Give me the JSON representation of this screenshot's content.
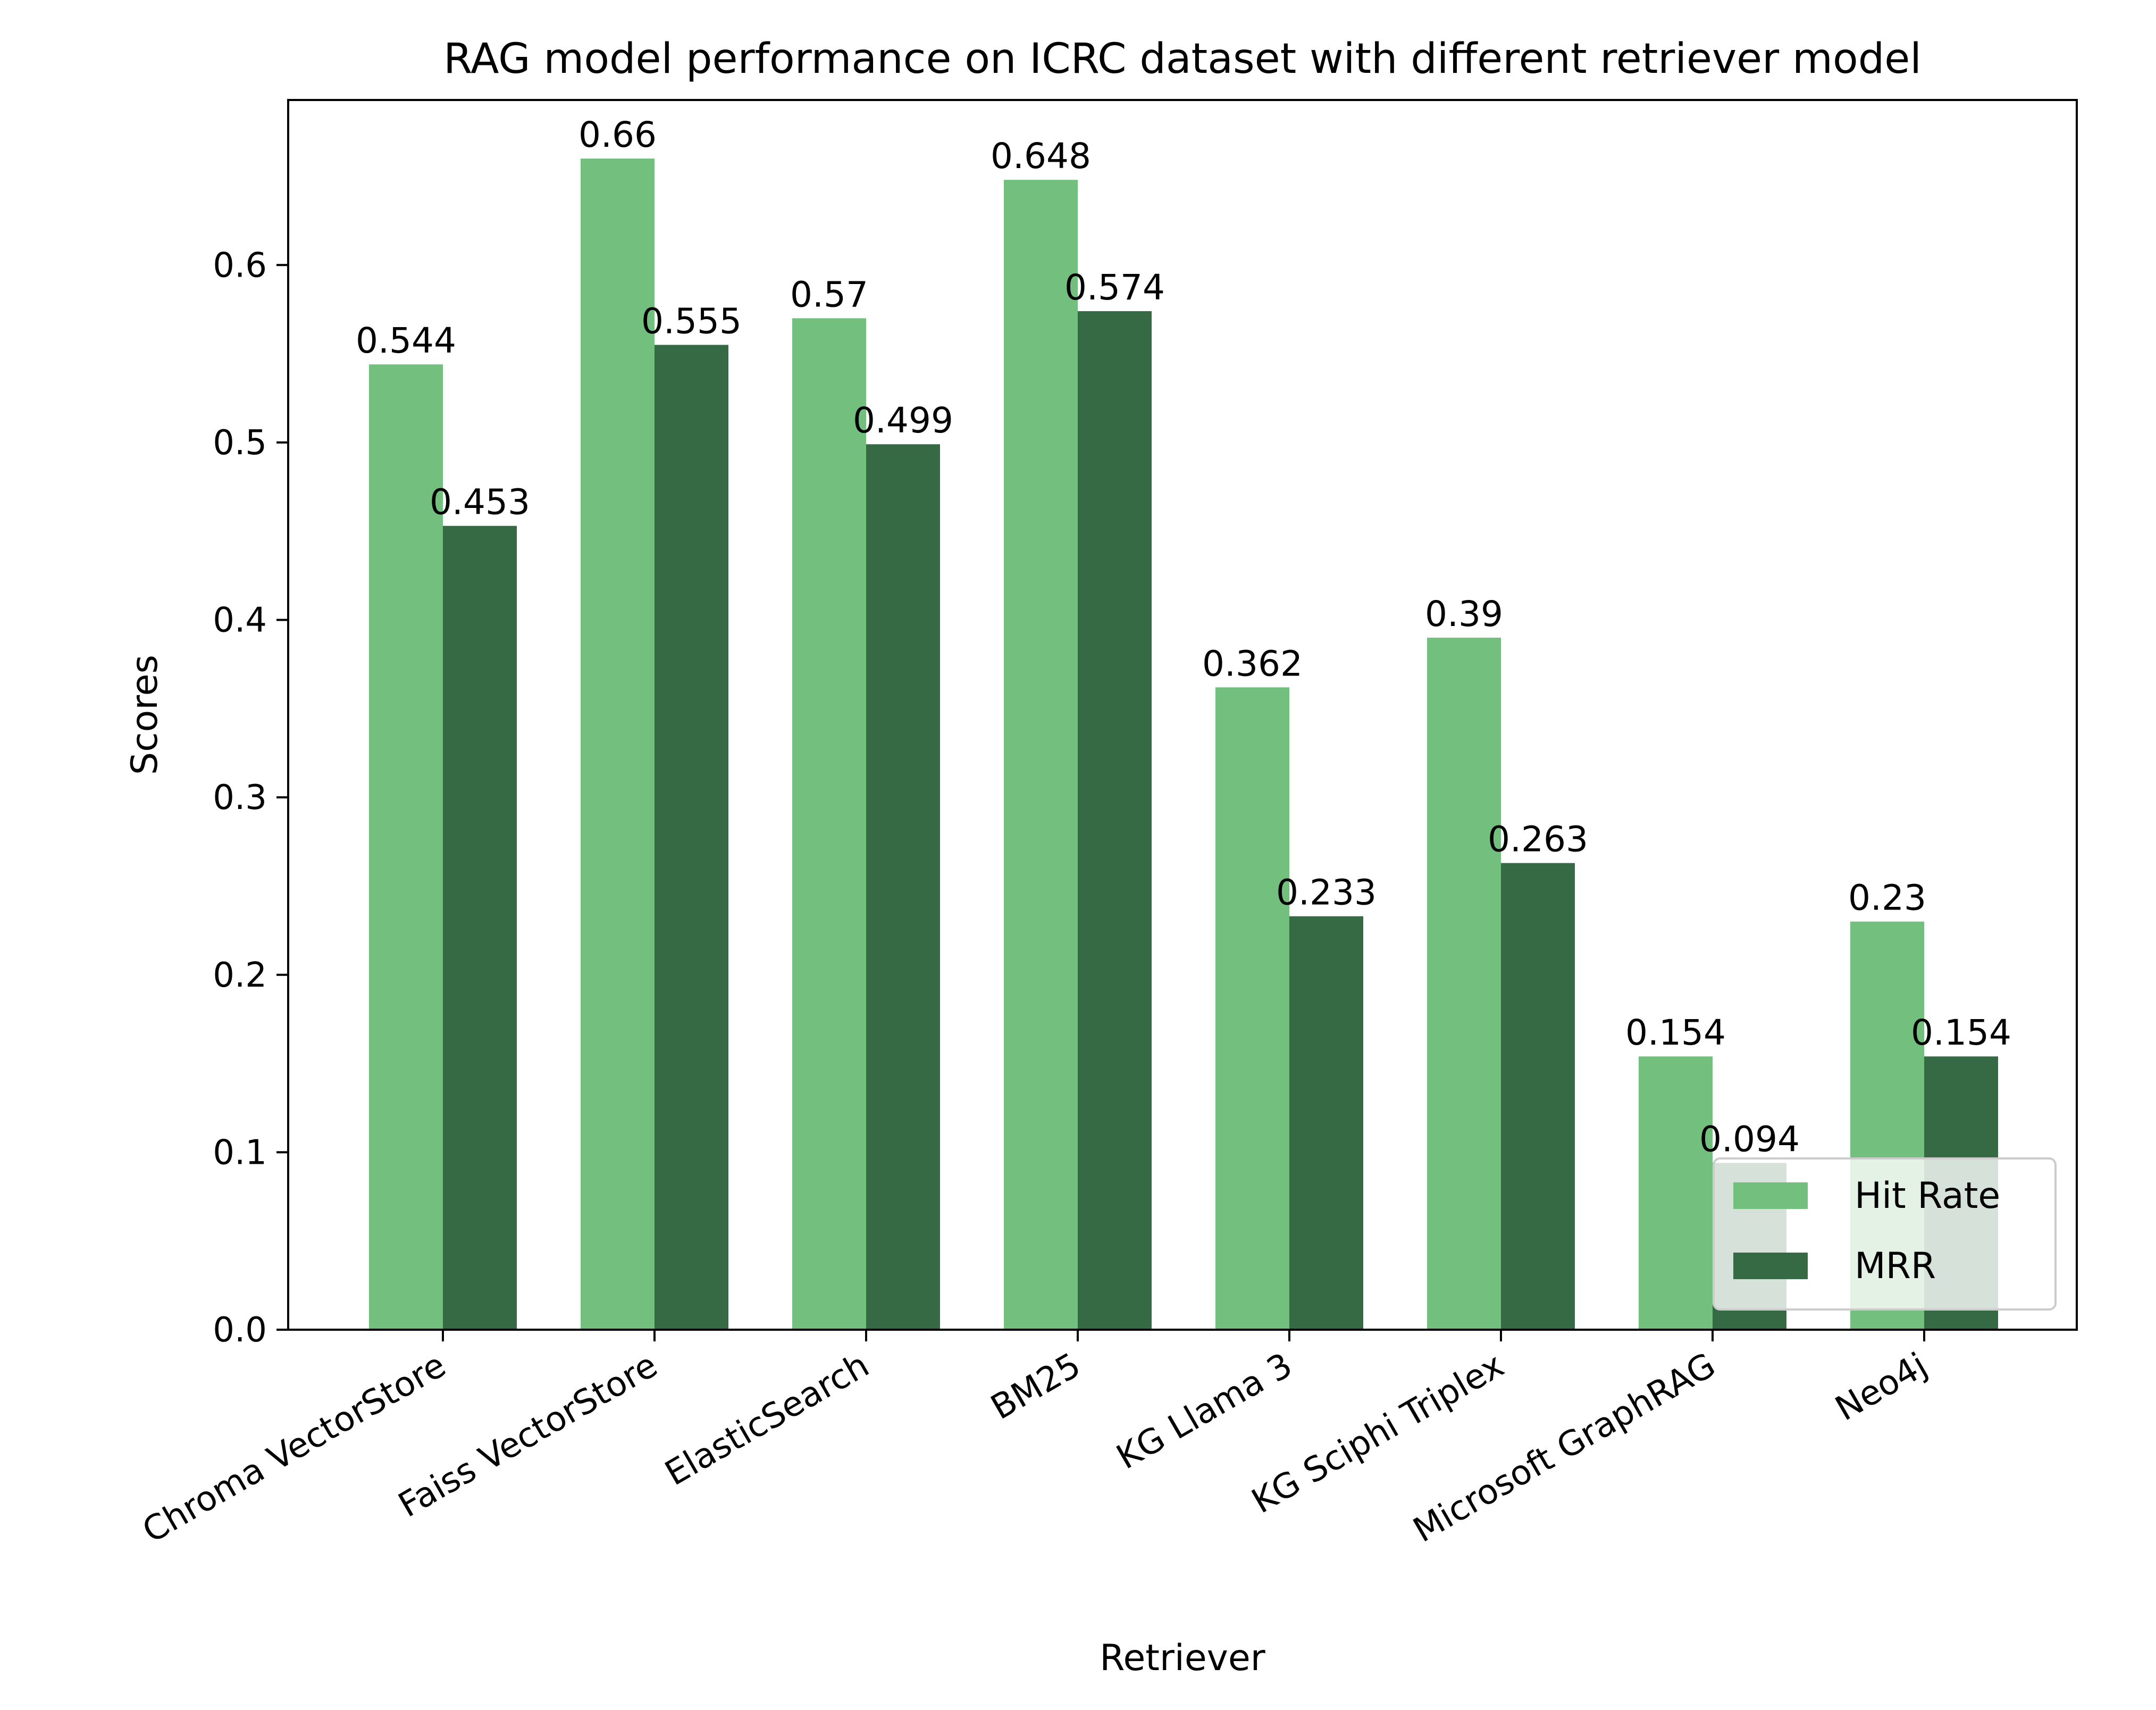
{
  "chart_data": {
    "type": "bar",
    "title": "RAG model performance on ICRC dataset with different retriever model",
    "xlabel": "Retriever",
    "ylabel": "Scores",
    "categories": [
      "Chroma VectorStore",
      "Faiss VectorStore",
      "ElasticSearch",
      "BM25",
      "KG Llama 3",
      "KG Sciphi Triplex",
      "Microsoft GraphRAG",
      "Neo4j"
    ],
    "series": [
      {
        "name": "Hit Rate",
        "color": "#73bf7e",
        "values": [
          0.544,
          0.66,
          0.57,
          0.648,
          0.362,
          0.39,
          0.154,
          0.23
        ],
        "labels": [
          "0.544",
          "0.66",
          "0.57",
          "0.648",
          "0.362",
          "0.39",
          "0.154",
          "0.23"
        ]
      },
      {
        "name": "MRR",
        "color": "#366a45",
        "values": [
          0.453,
          0.555,
          0.499,
          0.574,
          0.233,
          0.263,
          0.094,
          0.154
        ],
        "labels": [
          "0.453",
          "0.555",
          "0.499",
          "0.574",
          "0.233",
          "0.263",
          "0.094",
          "0.154"
        ]
      }
    ],
    "ylim": [
      0,
      0.693
    ],
    "yticks": [
      0.0,
      0.1,
      0.2,
      0.3,
      0.4,
      0.5,
      0.6
    ],
    "ytick_labels": [
      "0.0",
      "0.1",
      "0.2",
      "0.3",
      "0.4",
      "0.5",
      "0.6"
    ],
    "grid": false,
    "legend": "bottom-right"
  }
}
